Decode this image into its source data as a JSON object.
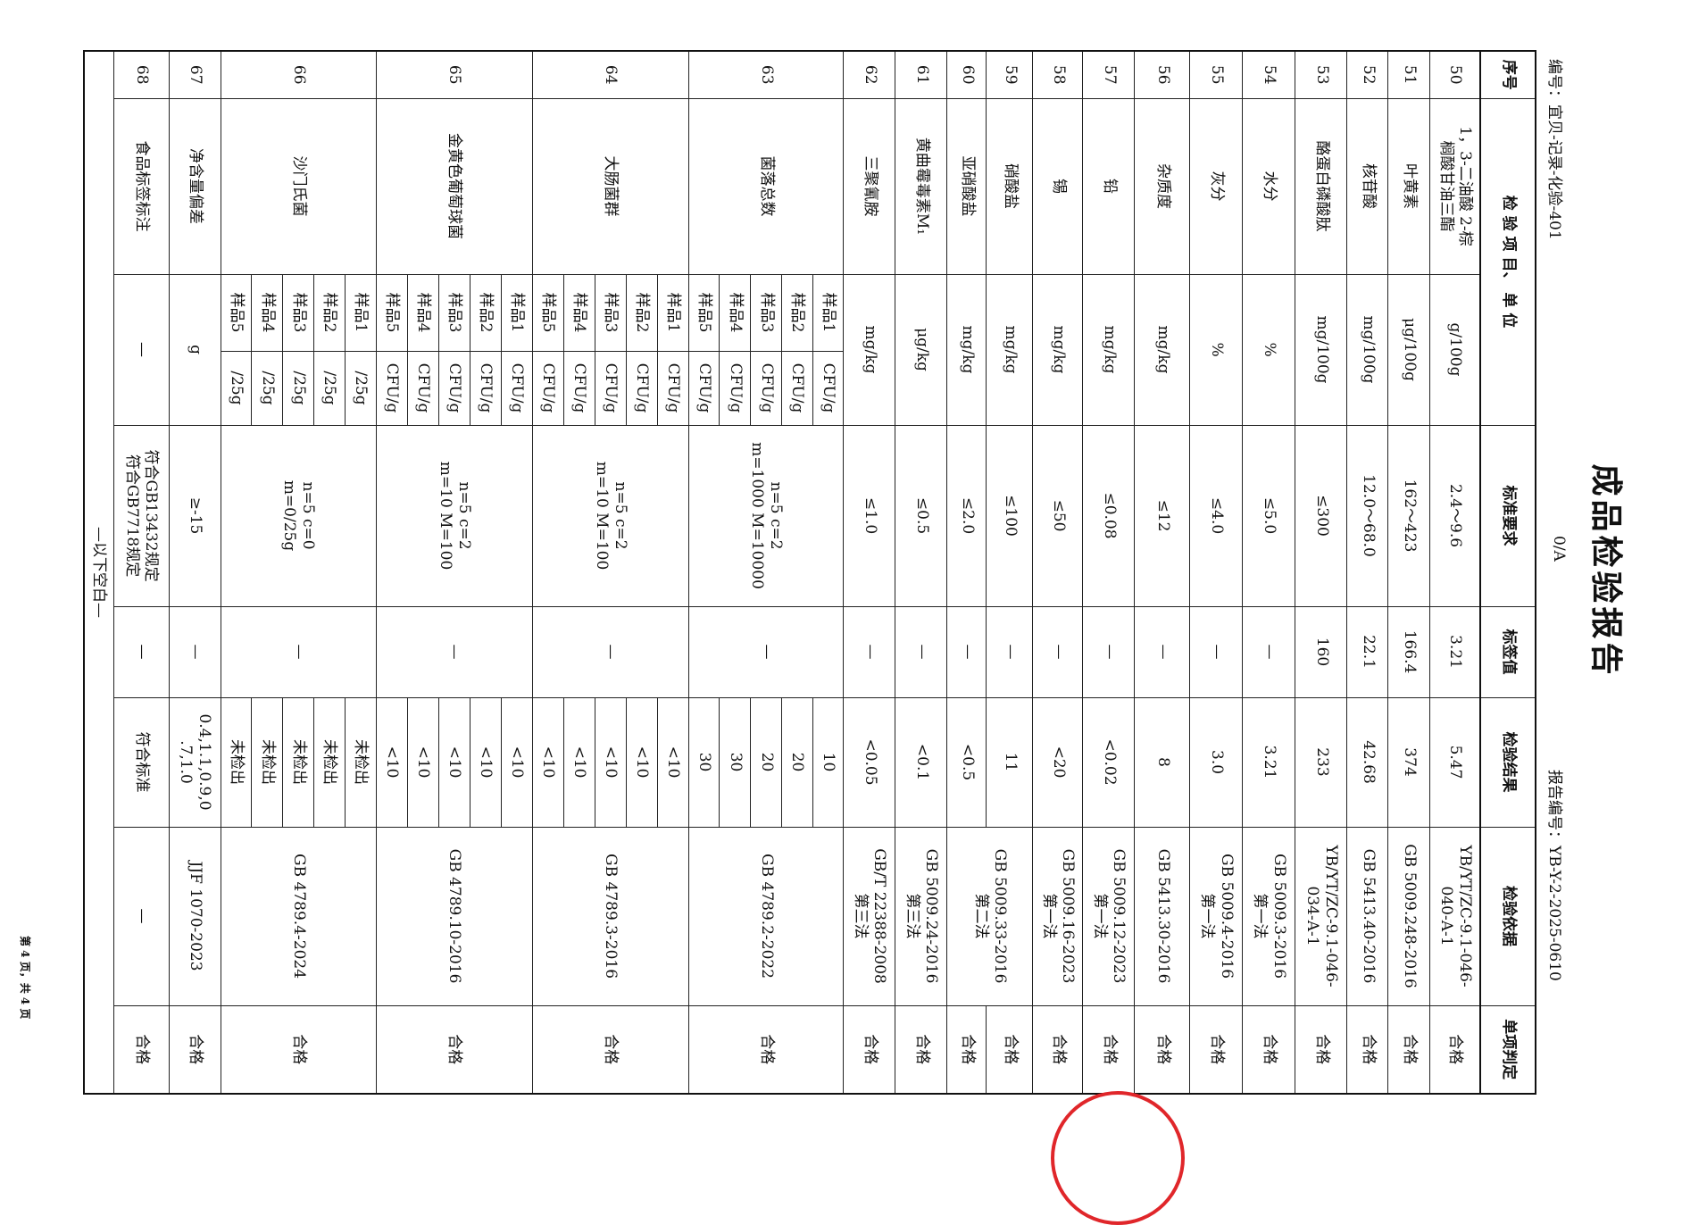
{
  "header": {
    "title": "成品检验报告",
    "doc_code": "编号：宜贝-记录-化验-401",
    "version": "0/A",
    "report_no": "报告编号：YB-Y-2-2025-0610"
  },
  "columns": {
    "no": "序号",
    "item_unit": "检 验 项 目、 单 位",
    "standard": "标准要求",
    "label_value": "标签值",
    "result": "检验结果",
    "method": "检验依据",
    "verdict": "单项判定"
  },
  "rows": [
    {
      "no": "50",
      "item": "1，3-二油酸 2-棕\n榈酸甘油三酯",
      "unit": "g/100g",
      "standard": "2.4～9.6",
      "label": "3.21",
      "result": "5.47",
      "method": "YB/YT/ZC-9.1-046-\n040-A-1",
      "verdict": "合格"
    },
    {
      "no": "51",
      "item": "叶黄素",
      "unit": "μg/100g",
      "standard": "162～423",
      "label": "166.4",
      "result": "374",
      "method": "GB 5009.248-2016",
      "verdict": "合格"
    },
    {
      "no": "52",
      "item": "核苷酸",
      "unit": "mg/100g",
      "standard": "12.0～68.0",
      "label": "22.1",
      "result": "42.68",
      "method": "GB 5413.40-2016",
      "verdict": "合格"
    },
    {
      "no": "53",
      "item": "酪蛋白磷酸肽",
      "unit": "mg/100g",
      "standard": "≤300",
      "label": "160",
      "result": "233",
      "method": "YB/YT/ZC-9.1-046-\n034-A-1",
      "verdict": "合格"
    },
    {
      "no": "54",
      "item": "水分",
      "unit": "%",
      "standard": "≤5.0",
      "label": "—",
      "result": "3.21",
      "method": "GB 5009.3-2016\n第一法",
      "verdict": "合格"
    },
    {
      "no": "55",
      "item": "灰分",
      "unit": "%",
      "standard": "≤4.0",
      "label": "—",
      "result": "3.0",
      "method": "GB 5009.4-2016\n第一法",
      "verdict": "合格"
    },
    {
      "no": "56",
      "item": "杂质度",
      "unit": "mg/kg",
      "standard": "≤12",
      "label": "—",
      "result": "8",
      "method": "GB 5413.30-2016",
      "verdict": "合格"
    },
    {
      "no": "57",
      "item": "铅",
      "unit": "mg/kg",
      "standard": "≤0.08",
      "label": "—",
      "result": "<0.02",
      "method": "GB 5009.12-2023\n第一法",
      "verdict": "合格"
    },
    {
      "no": "58",
      "item": "锡",
      "unit": "mg/kg",
      "standard": "≤50",
      "label": "—",
      "result": "<20",
      "method": "GB 5009.16-2023\n第一法",
      "verdict": "合格"
    },
    {
      "no": "59",
      "item": "硝酸盐",
      "unit": "mg/kg",
      "standard": "≤100",
      "label": "—",
      "result": "11",
      "method": "GB 5009.33-2016\n第二法",
      "verdict": "合格"
    },
    {
      "no": "60",
      "item": "亚硝酸盐",
      "unit": "mg/kg",
      "standard": "≤2.0",
      "label": "—",
      "result": "<0.5",
      "verdict": "合格"
    },
    {
      "no": "61",
      "item": "黄曲霉毒素M₁",
      "unit": "μg/kg",
      "standard": "≤0.5",
      "label": "—",
      "result": "<0.1",
      "method": "GB 5009.24-2016\n第三法",
      "verdict": "合格"
    },
    {
      "no": "62",
      "item": "三聚氰胺",
      "unit": "mg/kg",
      "standard": "≤1.0",
      "label": "—",
      "result": "<0.05",
      "method": "GB/T 22388-2008\n第三法",
      "verdict": "合格"
    },
    {
      "no": "63",
      "item": "菌落总数",
      "samples": [
        "样品1",
        "样品2",
        "样品3",
        "样品4",
        "样品5"
      ],
      "sample_unit": "CFU/g",
      "standard": "n=5    c=2\nm=1000 M=10000",
      "label": "—",
      "results": [
        "10",
        "20",
        "20",
        "30",
        "30"
      ],
      "method": "GB 4789.2-2022",
      "verdict": "合格"
    },
    {
      "no": "64",
      "item": "大肠菌群",
      "samples": [
        "样品1",
        "样品2",
        "样品3",
        "样品4",
        "样品5"
      ],
      "sample_unit": "CFU/g",
      "standard": "n=5    c=2\nm=10 M=100",
      "label": "—",
      "results": [
        "<10",
        "<10",
        "<10",
        "<10",
        "<10"
      ],
      "method": "GB 4789.3-2016",
      "verdict": "合格"
    },
    {
      "no": "65",
      "item": "金黄色葡萄球菌",
      "samples": [
        "样品1",
        "样品2",
        "样品3",
        "样品4",
        "样品5"
      ],
      "sample_unit": "CFU/g",
      "standard": "n=5  c=2\nm=10 M=100",
      "label": "—",
      "results": [
        "<10",
        "<10",
        "<10",
        "<10",
        "<10"
      ],
      "method": "GB 4789.10-2016",
      "verdict": "合格"
    },
    {
      "no": "66",
      "item": "沙门氏菌",
      "samples": [
        "样品1",
        "样品2",
        "样品3",
        "样品4",
        "样品5"
      ],
      "sample_unit": "/25g",
      "standard": "n=5    c=0\nm=0/25g",
      "label": "—",
      "results": [
        "未检出",
        "未检出",
        "未检出",
        "未检出",
        "未检出"
      ],
      "method": "GB 4789.4-2024",
      "verdict": "合格"
    },
    {
      "no": "67",
      "item": "净含量偏差",
      "unit": "g",
      "standard": "≥-15",
      "label": "—",
      "result": "0.4,1.1,0.9,0\n.7,1.0",
      "method": "JJF 1070-2023",
      "verdict": "合格"
    },
    {
      "no": "68",
      "item": "食品标签标注",
      "unit": "—",
      "standard": "符合GB13432规定\n符合GB7718规定",
      "label": "—",
      "result": "符合标准",
      "method": "—",
      "verdict": "合格"
    }
  ],
  "end_note": "—以下空白—",
  "footer": "第 4 页，共 4 页",
  "stamp_color": "#e0262a"
}
